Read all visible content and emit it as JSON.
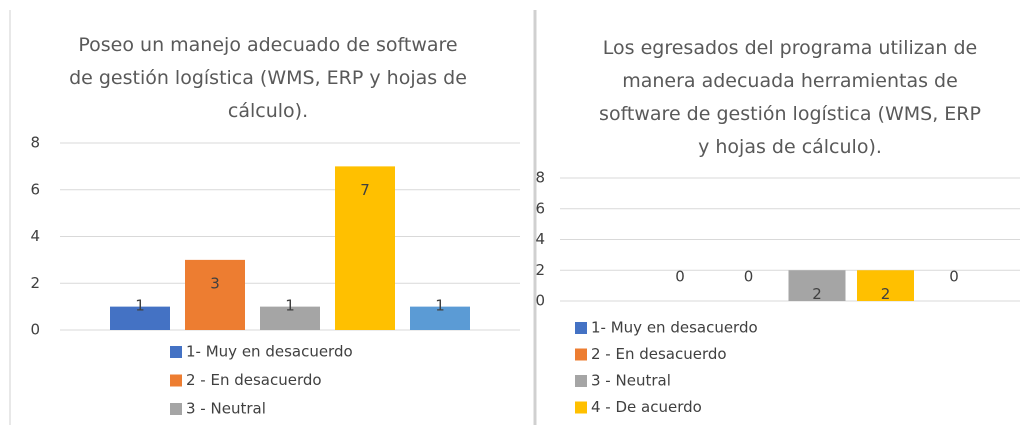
{
  "chart_data": [
    {
      "type": "bar",
      "title": "Poseo un manejo adecuado de software de gestión logística (WMS, ERP y hojas de cálculo).",
      "categories": [
        "1- Muy en desacuerdo",
        "2 - En desacuerdo",
        "3 - Neutral",
        null,
        null
      ],
      "values": [
        1,
        3,
        1,
        7,
        1
      ],
      "colors": [
        "#4472c4",
        "#ed7d31",
        "#a5a5a5",
        "#ffc000",
        "#5b9bd5"
      ],
      "ylim": [
        0,
        8
      ],
      "yticks": [
        0,
        2,
        4,
        6,
        8
      ],
      "grid": true
    },
    {
      "type": "bar",
      "title": "Los egresados del programa utilizan de manera adecuada herramientas de software de gestión logística (WMS, ERP y hojas de cálculo).",
      "categories": [
        "1- Muy en desacuerdo",
        "2 - En desacuerdo",
        "3 - Neutral",
        "4 - De acuerdo",
        null
      ],
      "values": [
        0,
        0,
        2,
        2,
        0
      ],
      "colors": [
        "#4472c4",
        "#ed7d31",
        "#a5a5a5",
        "#ffc000",
        "#5b9bd5"
      ],
      "ylim": [
        0,
        8
      ],
      "yticks": [
        0,
        2,
        4,
        6,
        8
      ],
      "grid": true
    }
  ]
}
